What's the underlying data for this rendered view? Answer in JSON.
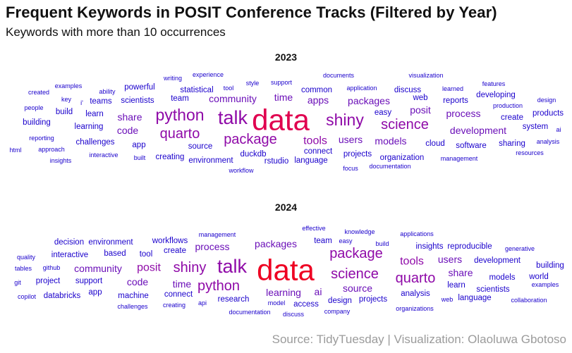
{
  "header": {
    "title": "Frequent Keywords in POSIT Conference Tracks (Filtered by Year)",
    "subtitle": "Keywords with more than 10 occurrences"
  },
  "caption": "Source: TidyTuesday | Visualization: Olaoluwa Gbotoso",
  "colors": {
    "low": "#1a00cc",
    "mid": "#8f0aa8",
    "high_2023": "#e0004f",
    "high_2024": "#ee0022"
  },
  "chart_data": [
    {
      "type": "wordcloud",
      "title": "2023",
      "words": [
        {
          "word": "data",
          "rank": 10
        },
        {
          "word": "talk",
          "rank": 7
        },
        {
          "word": "python",
          "rank": 6
        },
        {
          "word": "shiny",
          "rank": 6
        },
        {
          "word": "science",
          "rank": 5
        },
        {
          "word": "package",
          "rank": 5
        },
        {
          "word": "quarto",
          "rank": 5
        },
        {
          "word": "tools",
          "rank": 4
        },
        {
          "word": "packages",
          "rank": 3
        },
        {
          "word": "users",
          "rank": 3
        },
        {
          "word": "posit",
          "rank": 3
        },
        {
          "word": "share",
          "rank": 3
        },
        {
          "word": "process",
          "rank": 3
        },
        {
          "word": "development",
          "rank": 3
        },
        {
          "word": "community",
          "rank": 3
        },
        {
          "word": "apps",
          "rank": 3
        },
        {
          "word": "code",
          "rank": 3
        },
        {
          "word": "models",
          "rank": 3
        },
        {
          "word": "time",
          "rank": 3
        },
        {
          "word": "connect",
          "rank": 2
        },
        {
          "word": "learning",
          "rank": 2
        },
        {
          "word": "learn",
          "rank": 2
        },
        {
          "word": "scientists",
          "rank": 2
        },
        {
          "word": "team",
          "rank": 2
        },
        {
          "word": "create",
          "rank": 2
        },
        {
          "word": "cloud",
          "rank": 2
        },
        {
          "word": "common",
          "rank": 2
        },
        {
          "word": "source",
          "rank": 2
        },
        {
          "word": "challenges",
          "rank": 2
        },
        {
          "word": "building",
          "rank": 2
        },
        {
          "word": "teams",
          "rank": 2
        },
        {
          "word": "web",
          "rank": 2
        },
        {
          "word": "reports",
          "rank": 2
        },
        {
          "word": "system",
          "rank": 2
        },
        {
          "word": "software",
          "rank": 2
        },
        {
          "word": "projects",
          "rank": 2
        },
        {
          "word": "organization",
          "rank": 2
        },
        {
          "word": "build",
          "rank": 2
        },
        {
          "word": "app",
          "rank": 2
        },
        {
          "word": "powerful",
          "rank": 2
        },
        {
          "word": "statistical",
          "rank": 2
        },
        {
          "word": "creating",
          "rank": 2
        },
        {
          "word": "environment",
          "rank": 2
        },
        {
          "word": "duckdb",
          "rank": 2
        },
        {
          "word": "rstudio",
          "rank": 2
        },
        {
          "word": "language",
          "rank": 2
        },
        {
          "word": "easy",
          "rank": 2
        },
        {
          "word": "discuss",
          "rank": 2
        },
        {
          "word": "sharing",
          "rank": 2
        },
        {
          "word": "developing",
          "rank": 2
        },
        {
          "word": "products",
          "rank": 2
        },
        {
          "word": "people",
          "rank": 1
        },
        {
          "word": "reporting",
          "rank": 1
        },
        {
          "word": "approach",
          "rank": 1
        },
        {
          "word": "insights",
          "rank": 1
        },
        {
          "word": "html",
          "rank": 1
        },
        {
          "word": "examples",
          "rank": 1
        },
        {
          "word": "created",
          "rank": 1
        },
        {
          "word": "key",
          "rank": 1
        },
        {
          "word": "i'",
          "rank": 1
        },
        {
          "word": "ability",
          "rank": 1
        },
        {
          "word": "interactive",
          "rank": 1
        },
        {
          "word": "built",
          "rank": 1
        },
        {
          "word": "writing",
          "rank": 1
        },
        {
          "word": "experience",
          "rank": 1
        },
        {
          "word": "tool",
          "rank": 1
        },
        {
          "word": "style",
          "rank": 1
        },
        {
          "word": "support",
          "rank": 1
        },
        {
          "word": "documents",
          "rank": 1
        },
        {
          "word": "application",
          "rank": 1
        },
        {
          "word": "visualization",
          "rank": 1
        },
        {
          "word": "learned",
          "rank": 1
        },
        {
          "word": "features",
          "rank": 1
        },
        {
          "word": "production",
          "rank": 1
        },
        {
          "word": "design",
          "rank": 1
        },
        {
          "word": "ai",
          "rank": 1
        },
        {
          "word": "analysis",
          "rank": 1
        },
        {
          "word": "resources",
          "rank": 1
        },
        {
          "word": "management",
          "rank": 1
        },
        {
          "word": "documentation",
          "rank": 1
        },
        {
          "word": "focus",
          "rank": 1
        },
        {
          "word": "workflow",
          "rank": 1
        }
      ]
    },
    {
      "type": "wordcloud",
      "title": "2024",
      "words": [
        {
          "word": "data",
          "rank": 10
        },
        {
          "word": "talk",
          "rank": 7
        },
        {
          "word": "package",
          "rank": 5
        },
        {
          "word": "science",
          "rank": 5
        },
        {
          "word": "quarto",
          "rank": 5
        },
        {
          "word": "shiny",
          "rank": 5
        },
        {
          "word": "python",
          "rank": 5
        },
        {
          "word": "posit",
          "rank": 4
        },
        {
          "word": "tools",
          "rank": 4
        },
        {
          "word": "community",
          "rank": 3
        },
        {
          "word": "learning",
          "rank": 3
        },
        {
          "word": "share",
          "rank": 3
        },
        {
          "word": "time",
          "rank": 3
        },
        {
          "word": "code",
          "rank": 3
        },
        {
          "word": "source",
          "rank": 3
        },
        {
          "word": "packages",
          "rank": 3
        },
        {
          "word": "process",
          "rank": 3
        },
        {
          "word": "users",
          "rank": 3
        },
        {
          "word": "ai",
          "rank": 3
        },
        {
          "word": "support",
          "rank": 2
        },
        {
          "word": "models",
          "rank": 2
        },
        {
          "word": "analysis",
          "rank": 2
        },
        {
          "word": "development",
          "rank": 2
        },
        {
          "word": "learn",
          "rank": 2
        },
        {
          "word": "insights",
          "rank": 2
        },
        {
          "word": "research",
          "rank": 2
        },
        {
          "word": "access",
          "rank": 2
        },
        {
          "word": "design",
          "rank": 2
        },
        {
          "word": "tool",
          "rank": 2
        },
        {
          "word": "connect",
          "rank": 2
        },
        {
          "word": "team",
          "rank": 2
        },
        {
          "word": "create",
          "rank": 2
        },
        {
          "word": "workflows",
          "rank": 2
        },
        {
          "word": "based",
          "rank": 2
        },
        {
          "word": "interactive",
          "rank": 2
        },
        {
          "word": "environment",
          "rank": 2
        },
        {
          "word": "decision",
          "rank": 2
        },
        {
          "word": "projects",
          "rank": 2
        },
        {
          "word": "language",
          "rank": 2
        },
        {
          "word": "scientists",
          "rank": 2
        },
        {
          "word": "reproducible",
          "rank": 2
        },
        {
          "word": "world",
          "rank": 2
        },
        {
          "word": "building",
          "rank": 2
        },
        {
          "word": "app",
          "rank": 2
        },
        {
          "word": "machine",
          "rank": 2
        },
        {
          "word": "project",
          "rank": 2
        },
        {
          "word": "databricks",
          "rank": 2
        },
        {
          "word": "github",
          "rank": 1
        },
        {
          "word": "tables",
          "rank": 1
        },
        {
          "word": "quality",
          "rank": 1
        },
        {
          "word": "git",
          "rank": 1
        },
        {
          "word": "copilot",
          "rank": 1
        },
        {
          "word": "challenges",
          "rank": 1
        },
        {
          "word": "creating",
          "rank": 1
        },
        {
          "word": "api",
          "rank": 1
        },
        {
          "word": "documentation",
          "rank": 1
        },
        {
          "word": "model",
          "rank": 1
        },
        {
          "word": "discuss",
          "rank": 1
        },
        {
          "word": "company",
          "rank": 1
        },
        {
          "word": "management",
          "rank": 1
        },
        {
          "word": "effective",
          "rank": 1
        },
        {
          "word": "easy",
          "rank": 1
        },
        {
          "word": "knowledge",
          "rank": 1
        },
        {
          "word": "build",
          "rank": 1
        },
        {
          "word": "applications",
          "rank": 1
        },
        {
          "word": "generative",
          "rank": 1
        },
        {
          "word": "web",
          "rank": 1
        },
        {
          "word": "organizations",
          "rank": 1
        },
        {
          "word": "collaboration",
          "rank": 1
        },
        {
          "word": "examples",
          "rank": 1
        }
      ]
    }
  ]
}
